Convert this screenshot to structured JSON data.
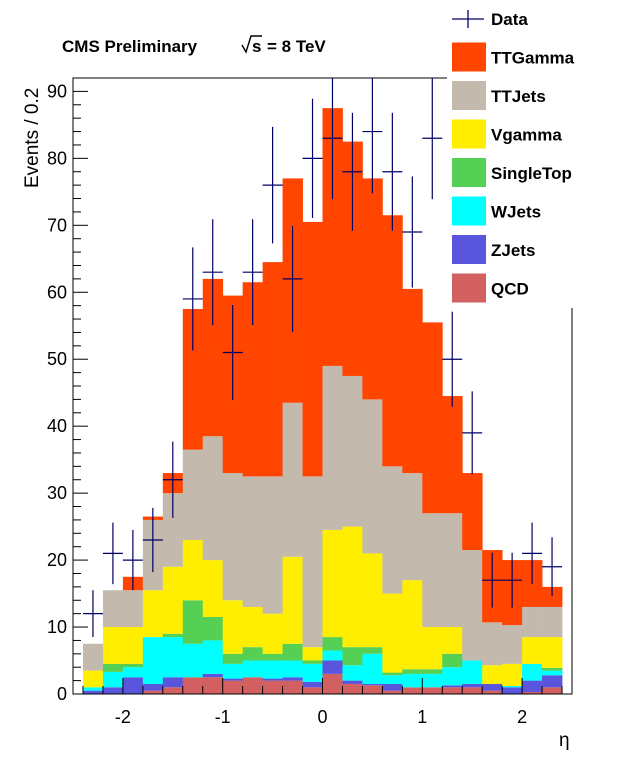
{
  "chart_data": {
    "type": "bar",
    "stacked": true,
    "title": "CMS Preliminary",
    "energy_label": "= 8 TeV",
    "energy_symbol": "s",
    "xlabel": "η",
    "ylabel": "Events / 0.2",
    "xlim": [
      -2.5,
      2.5
    ],
    "ylim": [
      0,
      92
    ],
    "bin_width": 0.2,
    "bin_low_edges": [
      -2.4,
      -2.2,
      -2.0,
      -1.8,
      -1.6,
      -1.4,
      -1.2,
      -1.0,
      -0.8,
      -0.6,
      -0.4,
      -0.2,
      0.0,
      0.2,
      0.4,
      0.6,
      0.8,
      1.0,
      1.2,
      1.4,
      1.6,
      1.8,
      2.0,
      2.2
    ],
    "x_ticks": [
      -2,
      -1,
      0,
      1,
      2
    ],
    "x_tick_labels": [
      "-2",
      "-1",
      "0",
      "1",
      "2"
    ],
    "y_ticks": [
      0,
      10,
      20,
      30,
      40,
      50,
      60,
      70,
      80,
      90
    ],
    "y_tick_labels": [
      "0",
      "10",
      "20",
      "30",
      "40",
      "50",
      "60",
      "70",
      "80",
      "90"
    ],
    "legend_position": "top-right",
    "legend": [
      {
        "label": "Data",
        "color": "#000066",
        "kind": "marker"
      },
      {
        "label": "TTGamma",
        "color": "#ff4500",
        "kind": "fill"
      },
      {
        "label": "TTJets",
        "color": "#c3b9ad",
        "kind": "fill"
      },
      {
        "label": "Vgamma",
        "color": "#ffee00",
        "kind": "fill"
      },
      {
        "label": "SingleTop",
        "color": "#55d055",
        "kind": "fill"
      },
      {
        "label": "WJets",
        "color": "#00ffff",
        "kind": "fill"
      },
      {
        "label": "ZJets",
        "color": "#5a55dd",
        "kind": "fill"
      },
      {
        "label": "QCD",
        "color": "#d26060",
        "kind": "fill"
      }
    ],
    "stack_order": [
      "QCD",
      "ZJets",
      "WJets",
      "SingleTop",
      "Vgamma",
      "TTJets",
      "TTGamma"
    ],
    "stack_totals": {
      "QCD": [
        0,
        0,
        0,
        0.5,
        1,
        2.5,
        2.5,
        2,
        2.5,
        2,
        2,
        1,
        3,
        1.5,
        1.3,
        0.5,
        1,
        1,
        1,
        1,
        0.5,
        0,
        0.3,
        1
      ],
      "ZJets": [
        0.5,
        1,
        2.5,
        1.5,
        2.5,
        2.5,
        3,
        2.3,
        2.5,
        2.3,
        2.5,
        1.8,
        5,
        2,
        1.5,
        1.5,
        1,
        1,
        1.3,
        1.5,
        1.5,
        1,
        2,
        2.8
      ],
      "WJets": [
        1,
        3.3,
        4,
        8.5,
        8.5,
        7.5,
        8,
        4.5,
        5,
        5,
        5,
        4.5,
        6.5,
        4.3,
        6,
        2.8,
        3,
        3,
        4,
        5,
        1,
        1.2,
        4.5,
        3.5
      ],
      "SingleTop": [
        1,
        4.5,
        4.5,
        5,
        9,
        14,
        11.5,
        6,
        7,
        6,
        7.5,
        5,
        8.5,
        7,
        7,
        3.2,
        3.7,
        3.7,
        6,
        5,
        1,
        1.2,
        4.5,
        3.9
      ],
      "Vgamma": [
        3.5,
        10,
        10,
        15.5,
        19,
        23,
        20,
        14,
        13,
        12,
        20.5,
        7,
        24.5,
        25,
        21,
        15,
        17,
        10,
        10,
        4.3,
        4.3,
        4.5,
        8.5,
        8.5
      ],
      "TTJets": [
        7.5,
        15.5,
        15.5,
        26,
        30,
        36.5,
        38.5,
        33,
        32.5,
        32.5,
        43.5,
        32.5,
        49,
        47.5,
        44,
        34,
        33,
        27,
        27,
        21.5,
        10.7,
        10.3,
        13,
        13
      ],
      "TTGamma": [
        7.5,
        15.5,
        17.5,
        26.5,
        33,
        57.5,
        62,
        59.5,
        61.5,
        64.5,
        77,
        70.5,
        87.5,
        82.5,
        77,
        71.5,
        60.5,
        55.5,
        44.5,
        33,
        21.5,
        20,
        20,
        16
      ]
    },
    "data_points": {
      "x": [
        -2.3,
        -2.1,
        -1.9,
        -1.7,
        -1.5,
        -1.3,
        -1.1,
        -0.9,
        -0.7,
        -0.5,
        -0.3,
        -0.1,
        0.1,
        0.3,
        0.5,
        0.7,
        0.9,
        1.1,
        1.3,
        1.5,
        1.7,
        1.9,
        2.1,
        2.3
      ],
      "y": [
        12,
        21,
        20,
        23,
        32,
        59,
        63,
        51,
        63,
        76,
        62,
        80,
        83,
        78,
        84,
        78,
        69,
        83,
        50,
        39,
        17,
        17,
        21,
        19
      ],
      "err": [
        3.5,
        4.6,
        4.5,
        4.8,
        5.7,
        7.7,
        7.9,
        7.1,
        7.9,
        8.7,
        7.9,
        8.9,
        9.1,
        8.8,
        9.2,
        8.8,
        8.3,
        9.1,
        7.1,
        6.2,
        4.1,
        4.1,
        4.6,
        4.4
      ]
    }
  }
}
